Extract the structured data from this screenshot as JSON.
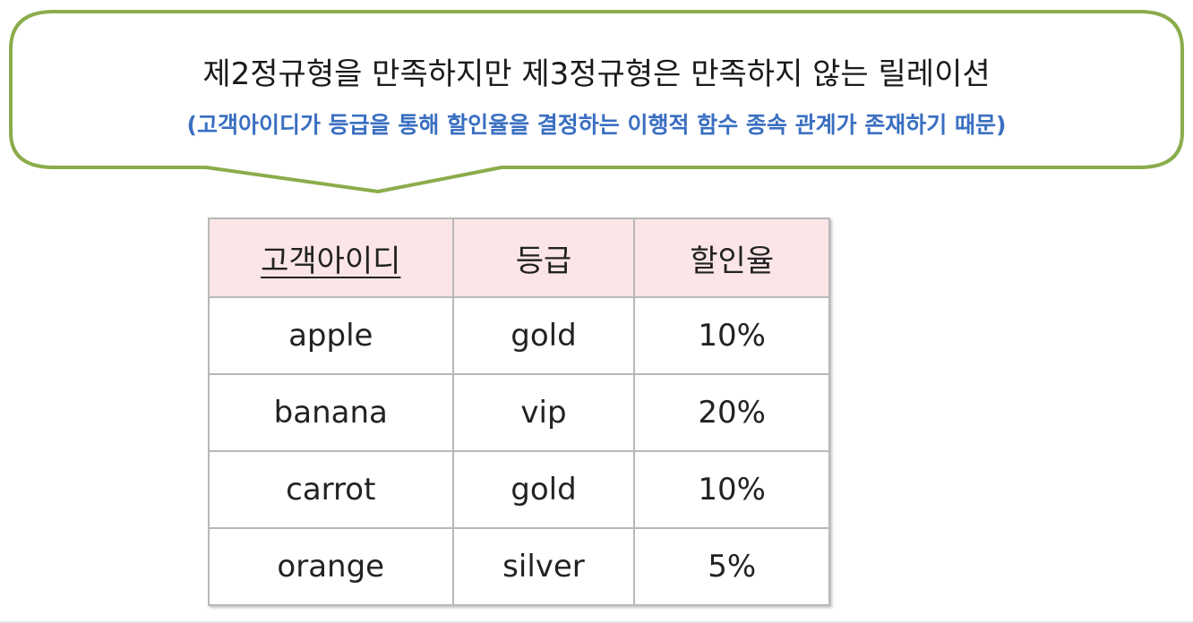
{
  "callout": {
    "title": "제2정규형을 만족하지만 제3정규형은 만족하지 않는 릴레이션",
    "subtitle": "(고객아이디가 등급을 통해 할인율을 결정하는 이행적 함수 종속 관계가 존재하기 때문)",
    "border_color": "#8bac4b",
    "title_color": "#1a1a1a",
    "subtitle_color": "#3a6fc1"
  },
  "table": {
    "header_background": "#fbe5e7",
    "columns": [
      "고객아이디",
      "등급",
      "할인율"
    ],
    "primary_key_column": "고객아이디",
    "rows": [
      [
        "apple",
        "gold",
        "10%"
      ],
      [
        "banana",
        "vip",
        "20%"
      ],
      [
        "carrot",
        "gold",
        "10%"
      ],
      [
        "orange",
        "silver",
        "5%"
      ]
    ]
  }
}
